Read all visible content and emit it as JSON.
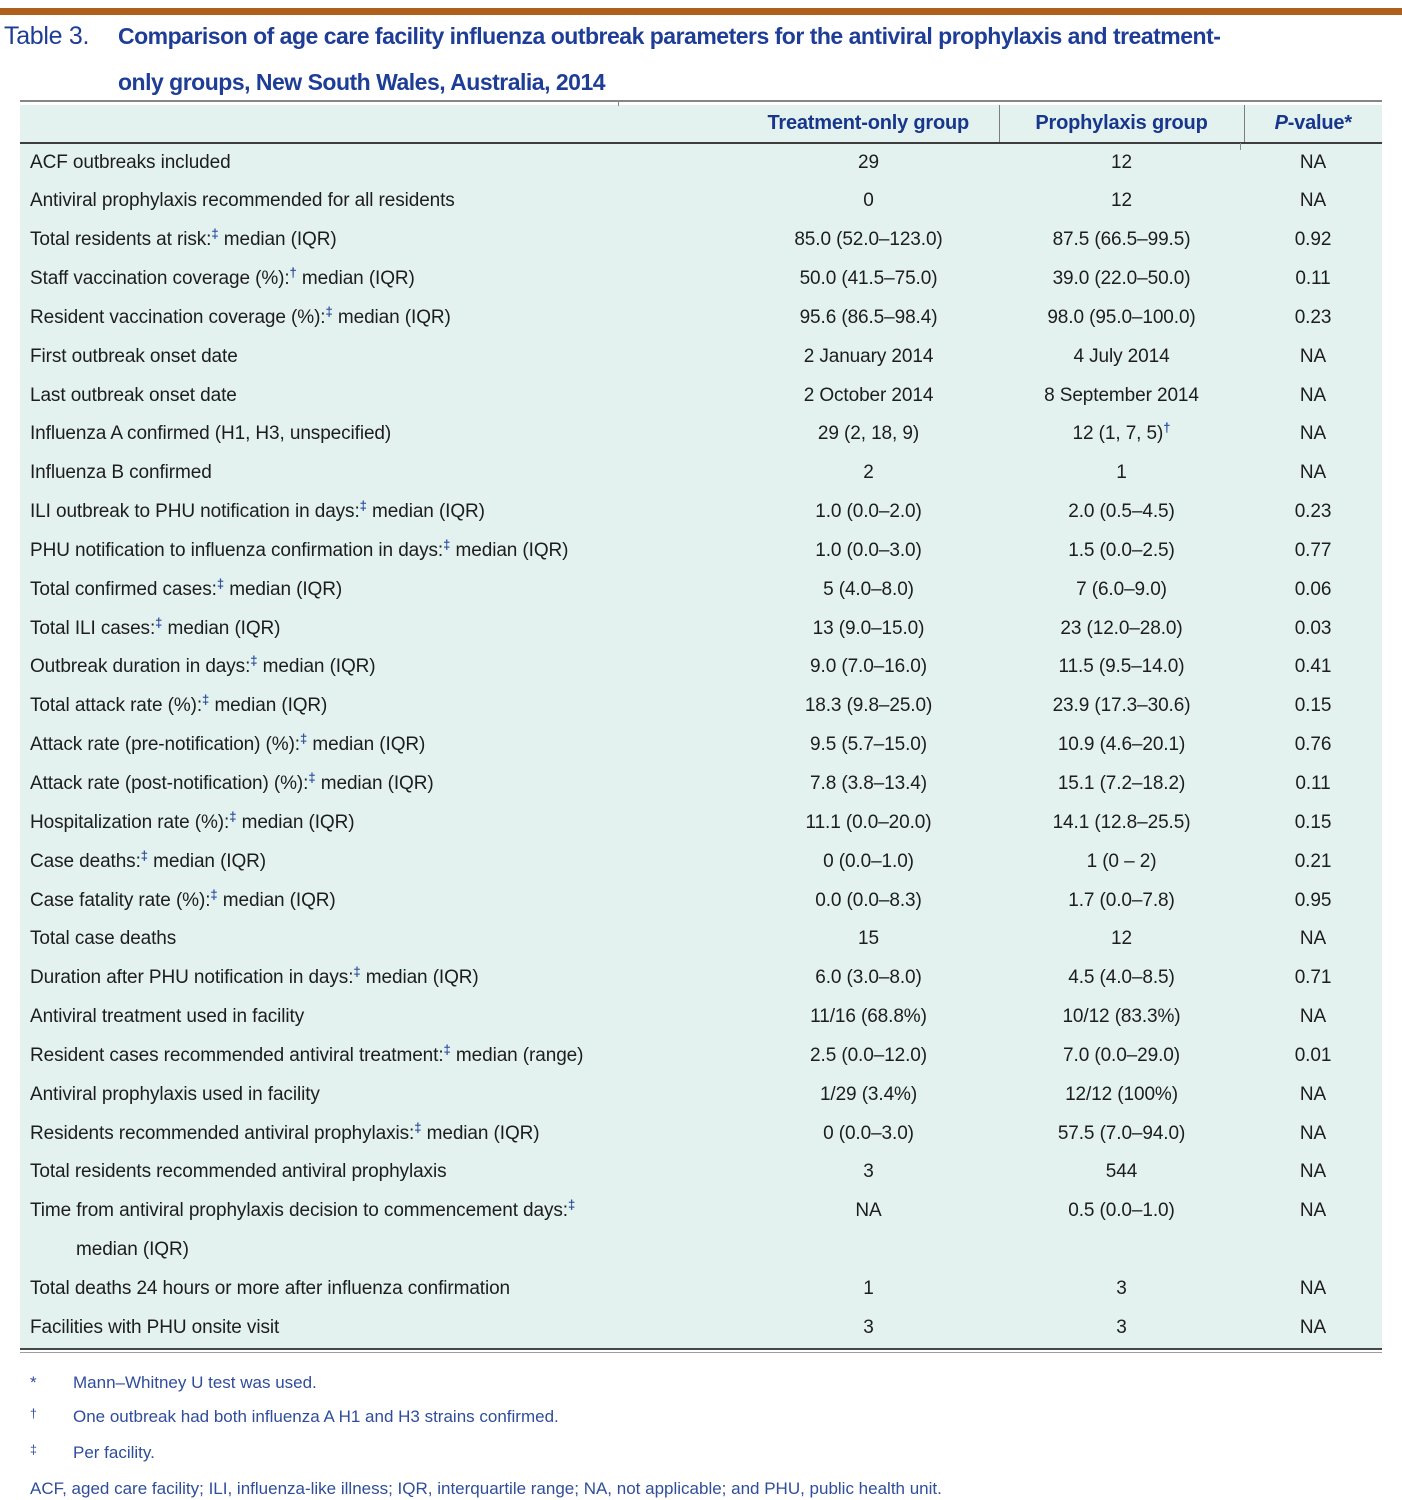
{
  "colors": {
    "accent_bar": "#b05e1c",
    "title_navy": "#1e3d96",
    "header_navy": "#17368c",
    "table_background": "#e3f2ef",
    "body_text": "#1d1d1d",
    "footnote_blue": "#2f4d9b"
  },
  "title": {
    "label": "Table 3.",
    "line1": "Comparison of age care facility influenza outbreak parameters for the antiviral prophylaxis and treatment-",
    "line2": "only groups, New South Wales, Australia, 2014"
  },
  "table": {
    "header": {
      "col1": "",
      "col2": "Treatment-only group",
      "col3": "Prophylaxis group",
      "col4_italic": "P",
      "col4_rest": "-value*"
    },
    "rows": [
      {
        "pre": "ACF outbreaks included",
        "t": "29",
        "p": "12",
        "pv": "NA"
      },
      {
        "pre": "Antiviral prophylaxis recommended for all residents",
        "t": "0",
        "p": "12",
        "pv": "NA"
      },
      {
        "pre": "Total residents at risk:",
        "sup": "‡",
        "post": " median (IQR)",
        "t": "85.0 (52.0–123.0)",
        "p": "87.5 (66.5–99.5)",
        "pv": "0.92"
      },
      {
        "pre": "Staff vaccination coverage (%):",
        "sup": "†",
        "post": " median (IQR)",
        "t": "50.0 (41.5–75.0)",
        "p": "39.0 (22.0–50.0)",
        "pv": "0.11"
      },
      {
        "pre": "Resident vaccination coverage (%):",
        "sup": "‡",
        "post": " median (IQR)",
        "t": "95.6 (86.5–98.4)",
        "p": "98.0 (95.0–100.0)",
        "pv": "0.23"
      },
      {
        "pre": "First outbreak onset date",
        "t": "2 January 2014",
        "p": "4 July 2014",
        "pv": "NA"
      },
      {
        "pre": "Last outbreak onset date",
        "t": "2 October 2014",
        "p": "8 September 2014",
        "pv": "NA"
      },
      {
        "pre": "Influenza A confirmed (H1, H3, unspecified)",
        "t": "29 (2, 18, 9)",
        "p": "12 (1, 7, 5)",
        "psup": "†",
        "pv": "NA"
      },
      {
        "pre": "Influenza B confirmed",
        "t": "2",
        "p": "1",
        "pv": "NA"
      },
      {
        "pre": "ILI outbreak to PHU notification in days:",
        "sup": "‡",
        "post": " median (IQR)",
        "t": "1.0 (0.0–2.0)",
        "p": "2.0 (0.5–4.5)",
        "pv": "0.23"
      },
      {
        "pre": "PHU notification to influenza confirmation in days:",
        "sup": "‡",
        "post": " median (IQR)",
        "t": "1.0 (0.0–3.0)",
        "p": "1.5 (0.0–2.5)",
        "pv": "0.77"
      },
      {
        "pre": "Total confirmed cases:",
        "sup": "‡",
        "post": " median (IQR)",
        "t": "5 (4.0–8.0)",
        "p": "7 (6.0–9.0)",
        "pv": "0.06"
      },
      {
        "pre": "Total ILI cases:",
        "sup": "‡",
        "post": " median (IQR)",
        "t": "13 (9.0–15.0)",
        "p": "23 (12.0–28.0)",
        "pv": "0.03"
      },
      {
        "pre": "Outbreak duration in days:",
        "sup": "‡",
        "post": " median (IQR)",
        "t": "9.0 (7.0–16.0)",
        "p": "11.5 (9.5–14.0)",
        "pv": "0.41"
      },
      {
        "pre": "Total attack rate (%):",
        "sup": "‡",
        "post": " median (IQR)",
        "t": "18.3 (9.8–25.0)",
        "p": "23.9 (17.3–30.6)",
        "pv": "0.15"
      },
      {
        "pre": "Attack rate (pre-notification) (%):",
        "sup": "‡",
        "post": " median (IQR)",
        "t": "9.5 (5.7–15.0)",
        "p": "10.9 (4.6–20.1)",
        "pv": "0.76"
      },
      {
        "pre": "Attack rate (post-notification) (%):",
        "sup": "‡",
        "post": " median (IQR)",
        "t": "7.8 (3.8–13.4)",
        "p": "15.1 (7.2–18.2)",
        "pv": "0.11"
      },
      {
        "pre": "Hospitalization rate (%):",
        "sup": "‡",
        "post": " median (IQR)",
        "t": "11.1 (0.0–20.0)",
        "p": "14.1 (12.8–25.5)",
        "pv": "0.15"
      },
      {
        "pre": "Case deaths:",
        "sup": "‡",
        "post": " median (IQR)",
        "t": "0 (0.0–1.0)",
        "p": "1 (0 – 2)",
        "pv": "0.21"
      },
      {
        "pre": "Case fatality rate (%):",
        "sup": "‡",
        "post": " median (IQR)",
        "t": "0.0 (0.0–8.3)",
        "p": "1.7 (0.0–7.8)",
        "pv": "0.95"
      },
      {
        "pre": "Total case deaths",
        "t": "15",
        "p": "12",
        "pv": "NA"
      },
      {
        "pre": "Duration after PHU notification in days:",
        "sup": "‡",
        "post": " median (IQR)",
        "t": "6.0 (3.0–8.0)",
        "p": "4.5 (4.0–8.5)",
        "pv": "0.71"
      },
      {
        "pre": "Antiviral treatment used in facility",
        "t": "11/16 (68.8%)",
        "p": "10/12 (83.3%)",
        "pv": "NA"
      },
      {
        "pre": "Resident cases recommended antiviral treatment:",
        "sup": "‡",
        "post": " median (range)",
        "t": "2.5 (0.0–12.0)",
        "p": "7.0 (0.0–29.0)",
        "pv": "0.01"
      },
      {
        "pre": "Antiviral prophylaxis used in facility",
        "t": "1/29 (3.4%)",
        "p": "12/12 (100%)",
        "pv": "NA"
      },
      {
        "pre": "Residents recommended antiviral prophylaxis:",
        "sup": "‡",
        "post": " median (IQR)",
        "t": "0 (0.0–3.0)",
        "p": "57.5 (7.0–94.0)",
        "pv": "NA"
      },
      {
        "pre": "Total residents recommended antiviral prophylaxis",
        "t": "3",
        "p": "544",
        "pv": "NA"
      },
      {
        "pre": "Time from antiviral prophylaxis decision to commencement days:",
        "sup": "‡",
        "line2": "median (IQR)",
        "t": "NA",
        "p": "0.5 (0.0–1.0)",
        "pv": "NA"
      },
      {
        "pre": "Total deaths 24 hours or more after influenza confirmation",
        "t": "1",
        "p": "3",
        "pv": "NA"
      },
      {
        "pre": "Facilities with PHU onsite visit",
        "t": "3",
        "p": "3",
        "pv": "NA"
      }
    ]
  },
  "footnotes": {
    "items": [
      {
        "marker": "*",
        "text": "Mann–Whitney U test was used."
      },
      {
        "marker": "†",
        "text": "One outbreak had both influenza A H1 and H3 strains confirmed."
      },
      {
        "marker": "‡",
        "text": "Per facility."
      }
    ],
    "abbreviations": "ACF, aged care facility; ILI, influenza-like illness; IQR, interquartile range; NA, not applicable; and PHU, public health unit."
  }
}
